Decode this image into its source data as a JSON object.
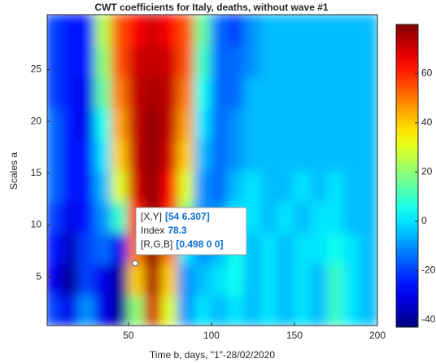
{
  "chart_data": {
    "type": "heatmap",
    "title": "CWT coefficients for Italy, deaths, without wave #1",
    "x_label": "Time b, days, \"1\"-28/02/2020",
    "y_label": "Scales a",
    "colormap": "jet",
    "x": [
      5,
      15,
      25,
      35,
      45,
      55,
      65,
      75,
      85,
      95,
      105,
      115,
      125,
      135,
      145,
      155,
      165,
      175,
      185,
      195
    ],
    "y": [
      1.8,
      4.8,
      7.8,
      10.8,
      13.8,
      16.8,
      19.8,
      22.8,
      25.8,
      28.8
    ],
    "values": [
      [
        -20,
        -30,
        -10,
        -30,
        -40,
        20,
        70,
        30,
        -10,
        0,
        -5,
        0,
        -5,
        0,
        -5,
        0,
        -5,
        10,
        0,
        -5
      ],
      [
        -30,
        -40,
        -20,
        -30,
        -40,
        40,
        75,
        40,
        -10,
        -5,
        0,
        5,
        -5,
        0,
        -5,
        0,
        -5,
        10,
        0,
        -5
      ],
      [
        -25,
        -35,
        -20,
        -15,
        -30,
        50,
        78,
        50,
        0,
        -10,
        -5,
        5,
        -5,
        0,
        -5,
        0,
        0,
        5,
        0,
        -5
      ],
      [
        -20,
        -30,
        -25,
        -10,
        10,
        60,
        78,
        60,
        20,
        -10,
        -10,
        0,
        0,
        -5,
        0,
        -5,
        0,
        0,
        -5,
        -5
      ],
      [
        -15,
        -25,
        -25,
        -5,
        30,
        70,
        78,
        65,
        30,
        -10,
        -15,
        -5,
        0,
        -5,
        -5,
        0,
        -5,
        0,
        -5,
        -5
      ],
      [
        -15,
        -25,
        -25,
        0,
        40,
        72,
        78,
        70,
        40,
        -5,
        -15,
        -10,
        -5,
        -5,
        -5,
        -5,
        -5,
        -5,
        -5,
        -5
      ],
      [
        -15,
        -25,
        -30,
        5,
        45,
        72,
        78,
        72,
        45,
        0,
        -15,
        -10,
        -5,
        -5,
        -5,
        -5,
        -5,
        -5,
        -5,
        -5
      ],
      [
        -20,
        -25,
        -30,
        15,
        50,
        72,
        75,
        72,
        50,
        5,
        -15,
        -15,
        -5,
        -5,
        -5,
        -5,
        -5,
        -5,
        -5,
        -5
      ],
      [
        -20,
        -25,
        -25,
        20,
        55,
        70,
        72,
        70,
        55,
        10,
        -15,
        -15,
        -10,
        -5,
        -5,
        -5,
        -5,
        -5,
        -5,
        -5
      ],
      [
        -20,
        -25,
        -25,
        25,
        55,
        65,
        70,
        65,
        55,
        15,
        -15,
        -20,
        -10,
        -5,
        -5,
        -5,
        -5,
        -5,
        -5,
        -5
      ]
    ],
    "xlim": [
      1,
      200
    ],
    "xticks": [
      50,
      100,
      150,
      200
    ],
    "ylim": [
      0.3,
      30.3
    ],
    "yticks": [
      5,
      10,
      15,
      20,
      25
    ],
    "clim": [
      -43,
      80
    ],
    "cticks": [
      -40,
      -20,
      0,
      20,
      40,
      60
    ],
    "datatip": {
      "x": 54,
      "y": 6.307,
      "rows": [
        {
          "label": "[X,Y]",
          "value": "[54 6.307]"
        },
        {
          "label": "Index",
          "value": "78.3"
        },
        {
          "label": "[R,G,B]",
          "value": "[0.498 0 0]"
        }
      ]
    }
  }
}
